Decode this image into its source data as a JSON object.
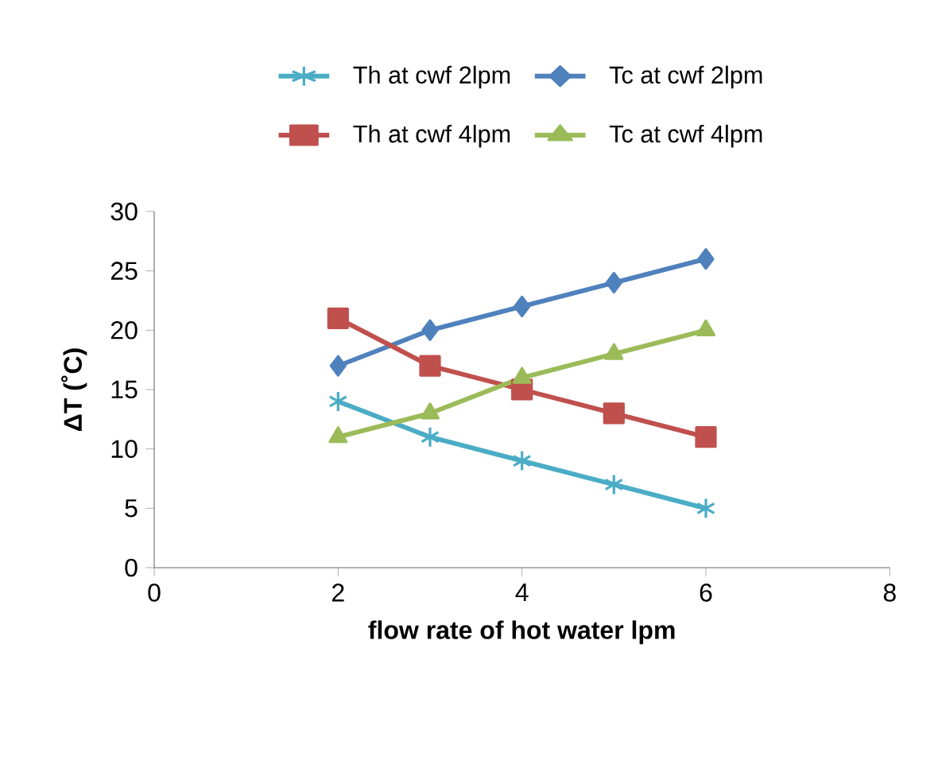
{
  "chart_data": {
    "type": "line",
    "x": [
      2,
      3,
      4,
      5,
      6
    ],
    "series": [
      {
        "name": "Th at cwf 2lpm",
        "color": "#4bacc6",
        "marker": "cross",
        "values": [
          14,
          11,
          9,
          7,
          5
        ]
      },
      {
        "name": "Tc at cwf 2lpm",
        "color": "#4f81bd",
        "marker": "diamond",
        "values": [
          17,
          20,
          22,
          24,
          26
        ]
      },
      {
        "name": "Th at cwf 4lpm",
        "color": "#c0504d",
        "marker": "square",
        "values": [
          21,
          17,
          15,
          13,
          11
        ]
      },
      {
        "name": "Tc at cwf 4lpm",
        "color": "#9bbb59",
        "marker": "triangle",
        "values": [
          11,
          13,
          16,
          18,
          20
        ]
      }
    ],
    "xlabel": "flow  rate of hot water lpm",
    "ylabel": "ΔT (˚C)",
    "xlim": [
      0,
      8
    ],
    "xticks": [
      0,
      2,
      4,
      6,
      8
    ],
    "ylim": [
      0,
      30
    ],
    "yticks": [
      0,
      5,
      10,
      15,
      20,
      25,
      30
    ],
    "legend": "top",
    "line_style": "solid"
  }
}
